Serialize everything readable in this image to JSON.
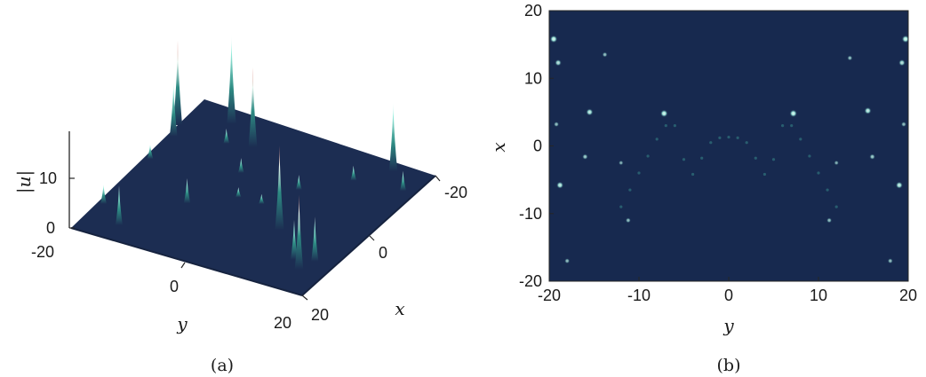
{
  "captions": {
    "a": "(a)",
    "b": "(b)"
  },
  "colors": {
    "surface": "#1c2d52",
    "surface_dark": "#16233f",
    "map_background": "#17294f",
    "spike_mid": "#2e8c84",
    "spike_light": "#9ff0e0",
    "spike_peak": "#ffffff",
    "spike_warm": "#d9736a",
    "axis": "#262626"
  },
  "chart_data": [
    {
      "type": "surface",
      "panel": "(a)",
      "zlabel": "|u|",
      "xlabel": "x",
      "ylabel": "y",
      "z_ticks": [
        0,
        10
      ],
      "y_ticks": [
        -20,
        0,
        20
      ],
      "x_ticks": [
        -20,
        0,
        20
      ],
      "x_range": [
        -20,
        20
      ],
      "y_range": [
        -20,
        20
      ],
      "z_range": [
        0,
        19
      ],
      "grid": false,
      "peaks": [
        {
          "x": -12,
          "y": -20,
          "z": 17,
          "warm": true
        },
        {
          "x": -9,
          "y": -19,
          "z": 11,
          "warm": false
        },
        {
          "x": 12,
          "y": -19,
          "z": 4,
          "warm": false
        },
        {
          "x": -16,
          "y": -13,
          "z": 18,
          "warm": false
        },
        {
          "x": 16,
          "y": -14,
          "z": 8,
          "warm": false
        },
        {
          "x": -12,
          "y": -7,
          "z": 16,
          "warm": true
        },
        {
          "x": 6,
          "y": -8,
          "z": 5,
          "warm": false
        },
        {
          "x": 6,
          "y": 8,
          "z": 17,
          "warm": true
        },
        {
          "x": 12,
          "y": 14,
          "z": 8,
          "warm": false
        },
        {
          "x": 14,
          "y": 16,
          "z": 15,
          "warm": true
        },
        {
          "x": 11,
          "y": 17,
          "z": 9,
          "warm": false
        },
        {
          "x": -16,
          "y": 15,
          "z": 14,
          "warm": false
        },
        {
          "x": -12,
          "y": 19,
          "z": 4,
          "warm": false
        },
        {
          "x": -2,
          "y": -19,
          "z": 3,
          "warm": false
        },
        {
          "x": -5,
          "y": -5,
          "z": 3,
          "warm": false
        },
        {
          "x": 1,
          "y": -2,
          "z": 2,
          "warm": false
        },
        {
          "x": 1,
          "y": 2,
          "z": 2,
          "warm": false
        },
        {
          "x": -5,
          "y": 5,
          "z": 3,
          "warm": false
        },
        {
          "x": -11,
          "y": -11,
          "z": 3,
          "warm": false
        },
        {
          "x": -11,
          "y": 11,
          "z": 3,
          "warm": false
        }
      ]
    },
    {
      "type": "heatmap",
      "panel": "(b)",
      "xlabel": "y",
      "ylabel": "x",
      "xlim": [
        -20,
        20
      ],
      "ylim": [
        -20,
        20
      ],
      "x_ticks": [
        -20,
        -10,
        0,
        10,
        20
      ],
      "y_ticks": [
        -20,
        -10,
        0,
        10,
        20
      ],
      "grid": false,
      "hotspots": [
        {
          "y": -19.5,
          "x": 15.8,
          "v": 0.9
        },
        {
          "y": 19.7,
          "x": 15.8,
          "v": 0.9
        },
        {
          "y": -19.0,
          "x": 12.3,
          "v": 0.7
        },
        {
          "y": 19.3,
          "x": 12.3,
          "v": 0.7
        },
        {
          "y": -15.5,
          "x": 5.0,
          "v": 0.8
        },
        {
          "y": -7.2,
          "x": 4.8,
          "v": 0.9
        },
        {
          "y": 7.2,
          "x": 4.8,
          "v": 0.9
        },
        {
          "y": 15.5,
          "x": 5.2,
          "v": 0.8
        },
        {
          "y": -18.8,
          "x": -5.8,
          "v": 0.8
        },
        {
          "y": 19.0,
          "x": -5.8,
          "v": 0.8
        },
        {
          "y": -16.0,
          "x": -1.6,
          "v": 0.5
        },
        {
          "y": 16.0,
          "x": -1.6,
          "v": 0.5
        },
        {
          "y": -13.8,
          "x": 13.5,
          "v": 0.4
        },
        {
          "y": 13.5,
          "x": 13.0,
          "v": 0.4
        },
        {
          "y": -19.2,
          "x": 3.2,
          "v": 0.4
        },
        {
          "y": 19.5,
          "x": 3.2,
          "v": 0.4
        },
        {
          "y": -12.0,
          "x": -2.5,
          "v": 0.3
        },
        {
          "y": 12.0,
          "x": -2.5,
          "v": 0.3
        },
        {
          "y": -11.2,
          "x": -11.0,
          "v": 0.4
        },
        {
          "y": 11.2,
          "x": -11.0,
          "v": 0.4
        },
        {
          "y": -18.0,
          "x": -17.0,
          "v": 0.4
        },
        {
          "y": 18.0,
          "x": -17.0,
          "v": 0.4
        }
      ],
      "curve": [
        {
          "y": -12,
          "x": -9.0
        },
        {
          "y": -11,
          "x": -6.5
        },
        {
          "y": -10,
          "x": -4.0
        },
        {
          "y": -9,
          "x": -1.5
        },
        {
          "y": -8,
          "x": 1.0
        },
        {
          "y": -7,
          "x": 3.0
        },
        {
          "y": -6,
          "x": 3.0
        },
        {
          "y": -5,
          "x": -2.0
        },
        {
          "y": -4,
          "x": -4.2
        },
        {
          "y": -3,
          "x": -1.8
        },
        {
          "y": -2,
          "x": 0.5
        },
        {
          "y": -1,
          "x": 1.2
        },
        {
          "y": 0,
          "x": 1.3
        },
        {
          "y": 1,
          "x": 1.2
        },
        {
          "y": 2,
          "x": 0.5
        },
        {
          "y": 3,
          "x": -1.8
        },
        {
          "y": 4,
          "x": -4.2
        },
        {
          "y": 5,
          "x": -2.0
        },
        {
          "y": 6,
          "x": 3.0
        },
        {
          "y": 7,
          "x": 3.0
        },
        {
          "y": 8,
          "x": 1.0
        },
        {
          "y": 9,
          "x": -1.5
        },
        {
          "y": 10,
          "x": -4.0
        },
        {
          "y": 11,
          "x": -6.5
        },
        {
          "y": 12,
          "x": -9.0
        }
      ]
    }
  ]
}
